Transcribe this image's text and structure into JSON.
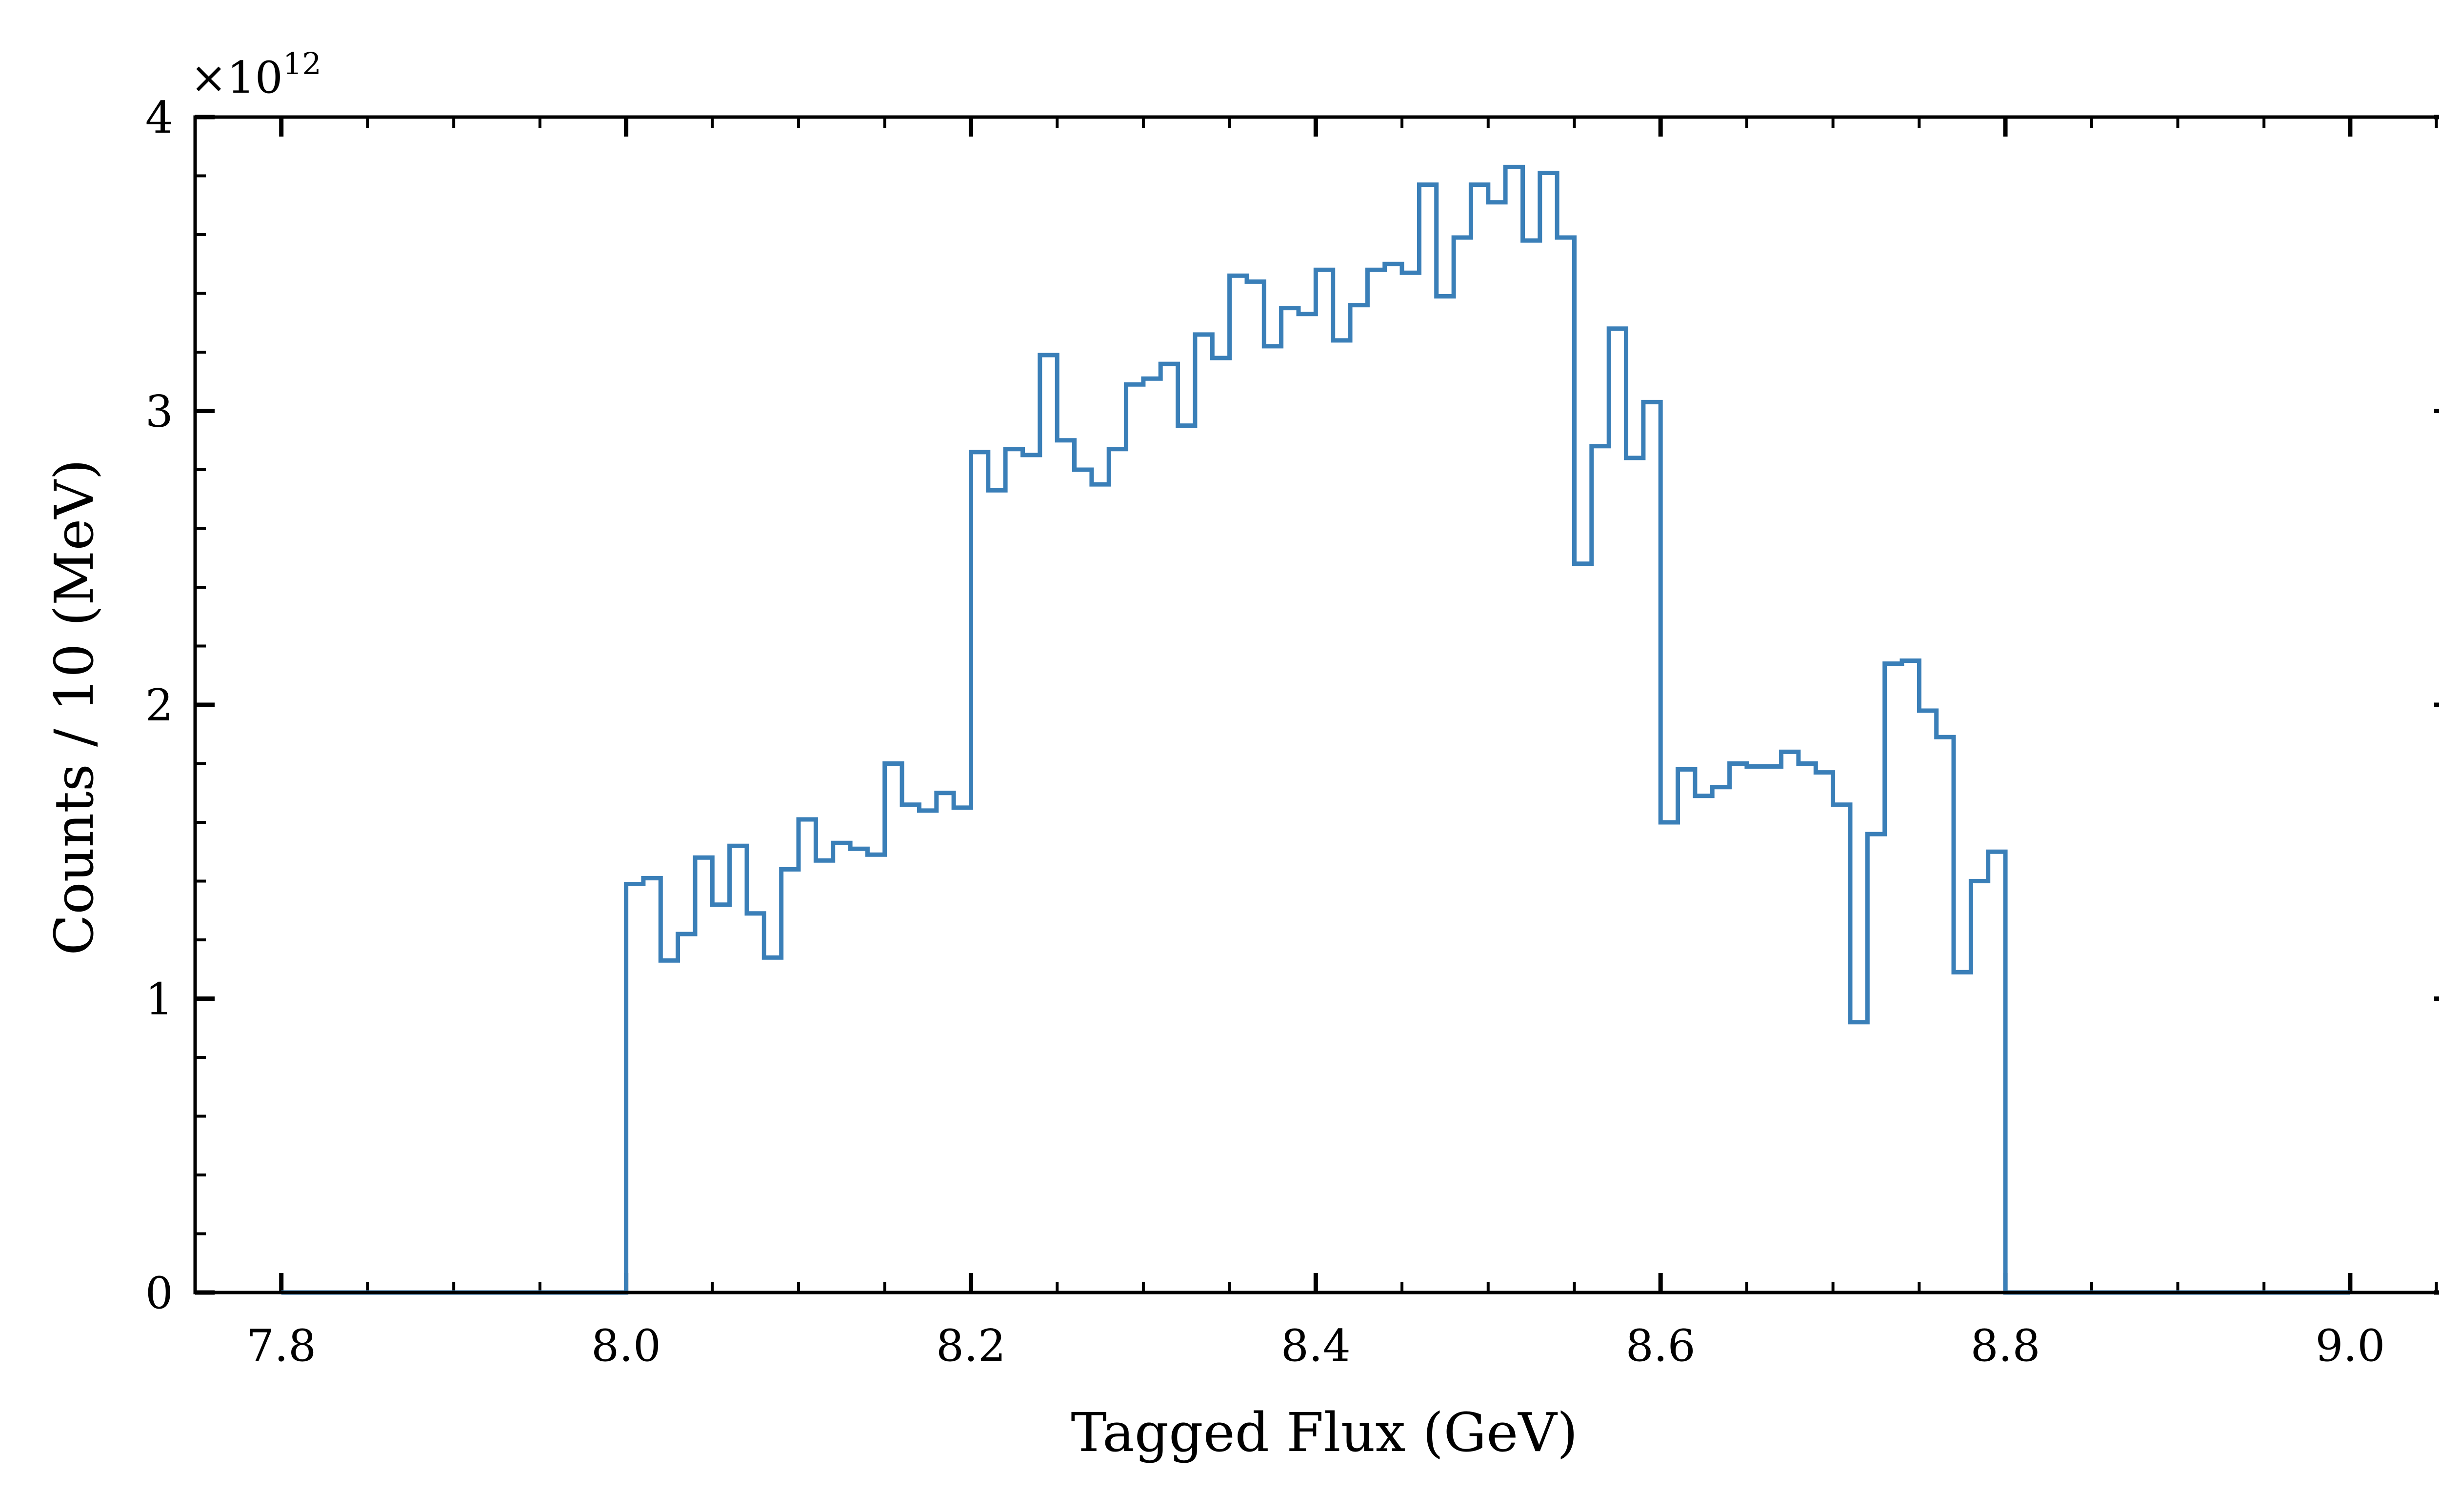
{
  "chart_data": {
    "type": "histogram",
    "xlabel": "Tagged Flux (GeV)",
    "ylabel": "Counts / 10 (MeV)",
    "y_multiplier_label": "×10",
    "y_multiplier_exponent": "12",
    "y_scale_factor": 1000000000000.0,
    "xlim": [
      7.75,
      9.06
    ],
    "ylim": [
      0,
      4.0
    ],
    "x_ticks": [
      7.8,
      8.0,
      8.2,
      8.4,
      8.6,
      8.8,
      9.0
    ],
    "x_tick_labels": [
      "7.8",
      "8.0",
      "8.2",
      "8.4",
      "8.6",
      "8.8",
      "9.0"
    ],
    "y_ticks": [
      0,
      1,
      2,
      3,
      4
    ],
    "y_tick_labels": [
      "0",
      "1",
      "2",
      "3",
      "4"
    ],
    "bin_start": 8.0,
    "bin_width": 0.01,
    "values": [
      1.39,
      1.41,
      1.13,
      1.22,
      1.48,
      1.32,
      1.52,
      1.29,
      1.14,
      1.44,
      1.61,
      1.47,
      1.53,
      1.51,
      1.49,
      1.8,
      1.66,
      1.64,
      1.7,
      1.65,
      2.86,
      2.73,
      2.87,
      2.85,
      3.19,
      2.9,
      2.8,
      2.75,
      2.87,
      3.09,
      3.11,
      3.16,
      2.95,
      3.26,
      3.18,
      3.46,
      3.44,
      3.22,
      3.35,
      3.33,
      3.48,
      3.24,
      3.36,
      3.48,
      3.5,
      3.47,
      3.77,
      3.39,
      3.59,
      3.77,
      3.71,
      3.83,
      3.58,
      3.81,
      3.59,
      2.48,
      2.88,
      3.28,
      2.84,
      3.03,
      1.6,
      1.78,
      1.69,
      1.72,
      1.8,
      1.79,
      1.79,
      1.84,
      1.8,
      1.77,
      1.66,
      0.92,
      1.56,
      2.14,
      2.15,
      1.98,
      1.89,
      1.09,
      1.4,
      1.5
    ],
    "series_color": "#3a7fb8",
    "grid": false
  }
}
